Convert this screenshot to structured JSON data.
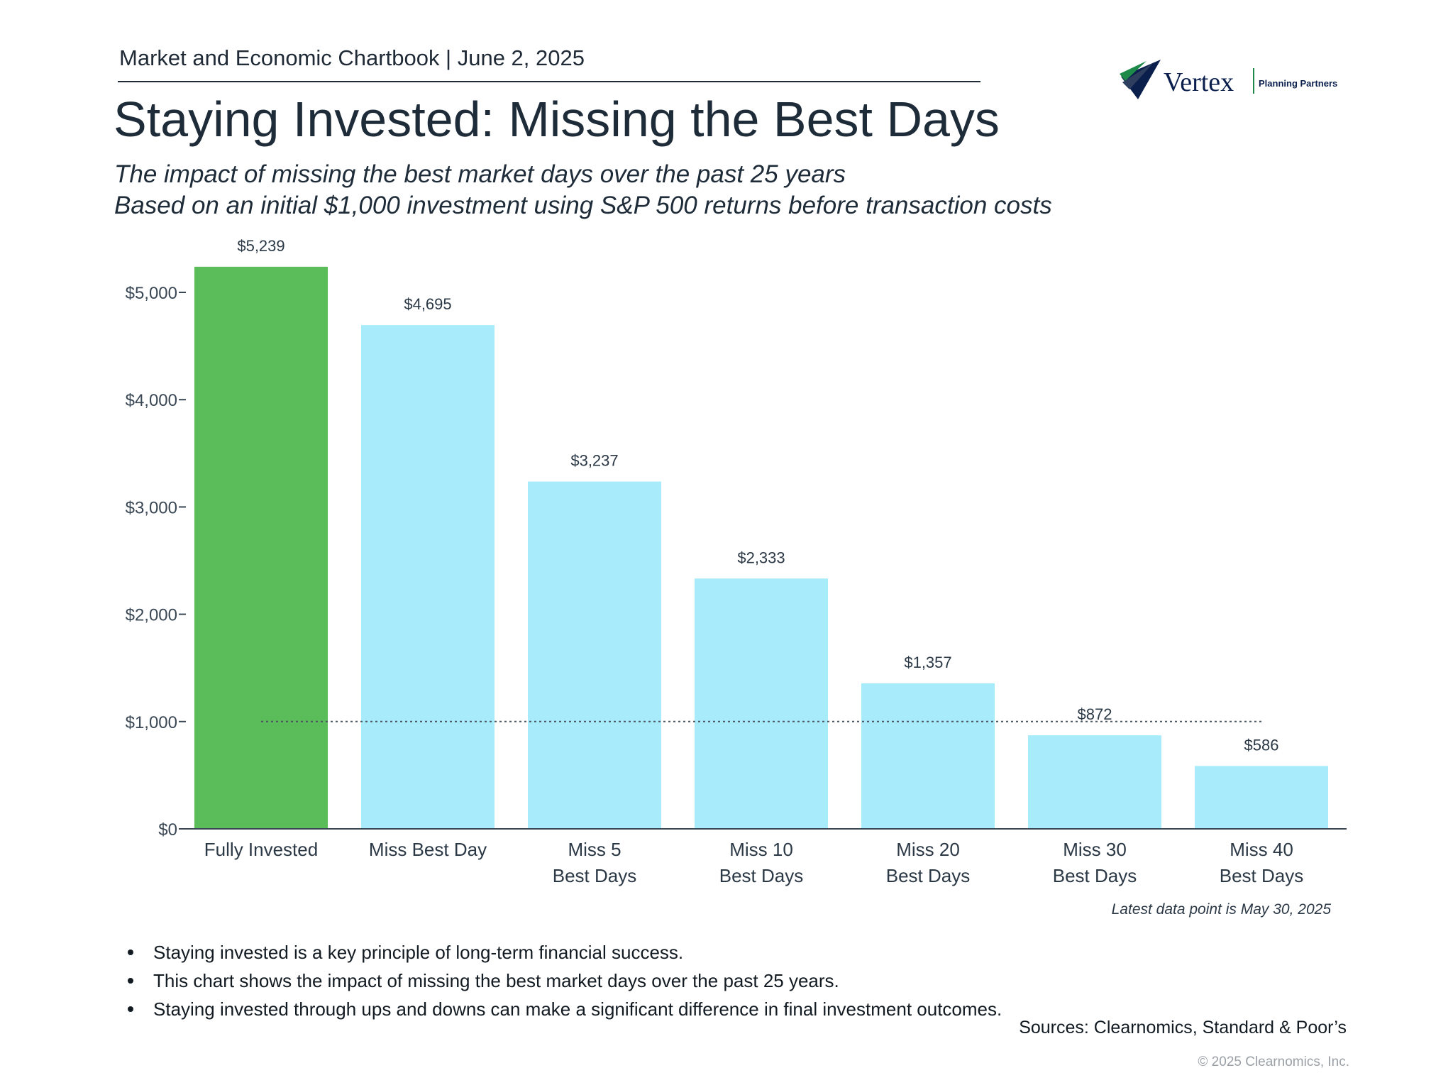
{
  "header": {
    "text": "Market and Economic Chartbook | June 2, 2025"
  },
  "logo": {
    "brand": "Vertex",
    "tagline": "Planning Partners",
    "colors": [
      "#0b1f4d",
      "#1d8a4a"
    ]
  },
  "title": "Staying Invested: Missing the Best Days",
  "subtitle_lines": [
    "The impact of missing the best market days over the past 25 years",
    "Based on an initial $1,000 investment using S&P 500 returns before transaction costs"
  ],
  "chart_data": {
    "type": "bar",
    "categories": [
      [
        "Fully Invested"
      ],
      [
        "Miss Best Day"
      ],
      [
        "Miss 5",
        "Best Days"
      ],
      [
        "Miss 10",
        "Best Days"
      ],
      [
        "Miss 20",
        "Best Days"
      ],
      [
        "Miss 30",
        "Best Days"
      ],
      [
        "Miss 40",
        "Best Days"
      ]
    ],
    "values": [
      5239,
      4695,
      3237,
      2333,
      1357,
      872,
      586
    ],
    "value_labels": [
      "$5,239",
      "$4,695",
      "$3,237",
      "$2,333",
      "$1,357",
      "$872",
      "$586"
    ],
    "bar_colors": [
      "#5bbd5a",
      "#a8ecfc",
      "#a8ecfc",
      "#a8ecfc",
      "#a8ecfc",
      "#a8ecfc",
      "#a8ecfc"
    ],
    "yticks": [
      0,
      1000,
      2000,
      3000,
      4000,
      5000
    ],
    "ytick_labels": [
      "$0",
      "$1,000",
      "$2,000",
      "$3,000",
      "$4,000",
      "$5,000"
    ],
    "ylim": [
      0,
      5500
    ],
    "reference_line": {
      "value": 1000,
      "style": "dotted"
    },
    "grid": false,
    "legend": "none",
    "xlabel": "",
    "ylabel": ""
  },
  "note": "Latest data point is May 30, 2025",
  "bullets": [
    "Staying invested is a key principle of long-term financial success.",
    "This chart shows the impact of missing the best market days over the past 25 years.",
    "Staying invested through ups and downs can make a significant difference in final investment outcomes."
  ],
  "sources": "Sources: Clearnomics, Standard & Poor’s",
  "copyright": "© 2025 Clearnomics, Inc."
}
